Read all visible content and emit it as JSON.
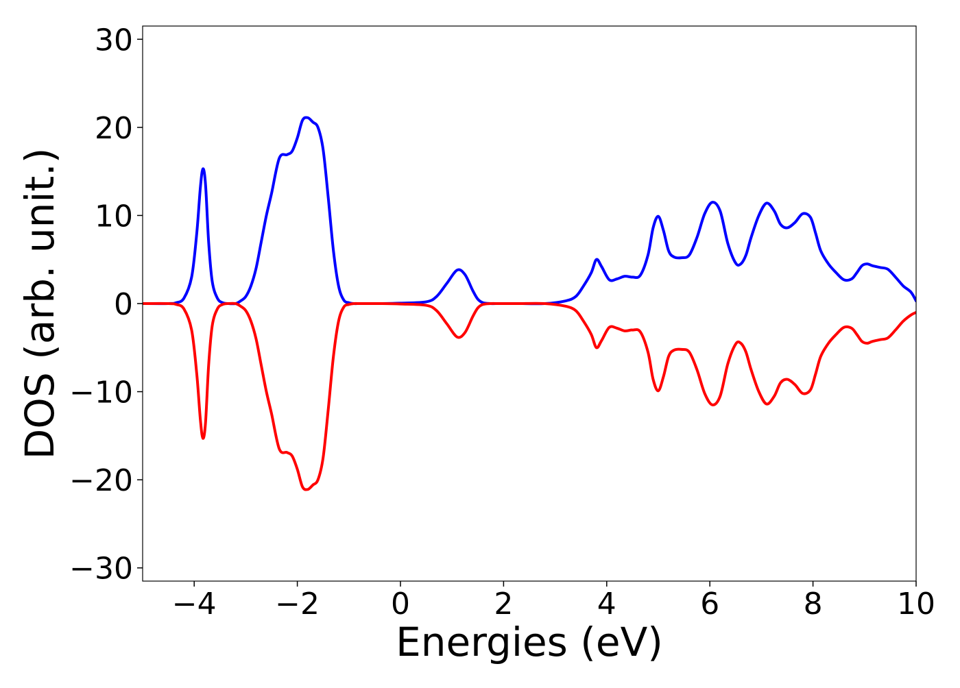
{
  "chart_data": {
    "type": "line",
    "title": "",
    "xlabel": "Energies (eV)",
    "ylabel": "DOS (arb. unit.)",
    "xlim": [
      -5,
      10
    ],
    "ylim": [
      -31.5,
      31.5
    ],
    "grid": false,
    "legend": "none",
    "x_ticks": [
      -4,
      -2,
      0,
      2,
      4,
      6,
      8,
      10
    ],
    "x_tick_labels": [
      "−4",
      "−2",
      "0",
      "2",
      "4",
      "6",
      "8",
      "10"
    ],
    "y_ticks": [
      30,
      20,
      10,
      0,
      -10,
      -20,
      -30
    ],
    "y_tick_labels": [
      "30",
      "20",
      "10",
      "0",
      "−10",
      "−20",
      "−30"
    ],
    "series": [
      {
        "color": "#0000ff",
        "x": [
          -5.0,
          -4.5,
          -4.35,
          -4.2,
          -4.05,
          -3.95,
          -3.88,
          -3.83,
          -3.78,
          -3.72,
          -3.65,
          -3.55,
          -3.45,
          -3.35,
          -3.2,
          -3.1,
          -3.0,
          -2.9,
          -2.8,
          -2.7,
          -2.6,
          -2.5,
          -2.35,
          -2.2,
          -2.1,
          -2.0,
          -1.9,
          -1.8,
          -1.7,
          -1.6,
          -1.5,
          -1.4,
          -1.3,
          -1.2,
          -1.1,
          -1.0,
          -0.9,
          -0.8,
          -0.7,
          -0.6,
          -0.4,
          0.0,
          0.5,
          0.7,
          0.9,
          1.1,
          1.25,
          1.4,
          1.5,
          1.6,
          1.75,
          1.9,
          2.05,
          2.3,
          2.8,
          3.2,
          3.4,
          3.55,
          3.7,
          3.8,
          3.9,
          4.05,
          4.2,
          4.35,
          4.5,
          4.65,
          4.8,
          4.9,
          5.0,
          5.1,
          5.2,
          5.3,
          5.45,
          5.6,
          5.75,
          5.9,
          6.05,
          6.2,
          6.35,
          6.5,
          6.6,
          6.7,
          6.8,
          6.95,
          7.1,
          7.25,
          7.37,
          7.5,
          7.65,
          7.8,
          7.95,
          8.05,
          8.15,
          8.3,
          8.45,
          8.6,
          8.75,
          8.85,
          8.95,
          9.05,
          9.15,
          9.3,
          9.45,
          9.6,
          9.75,
          9.9,
          10.0
        ],
        "values": [
          0,
          0,
          0.1,
          0.6,
          3.0,
          8.0,
          13.2,
          15.3,
          13.5,
          7.0,
          2.5,
          0.6,
          0.1,
          0.0,
          0.0,
          0.3,
          0.8,
          2.0,
          4.0,
          7.0,
          10.0,
          12.5,
          16.5,
          16.9,
          17.3,
          18.8,
          20.8,
          21.1,
          20.6,
          20.0,
          17.5,
          12.0,
          6.0,
          2.0,
          0.4,
          0.1,
          0.0,
          0.0,
          0.0,
          0.0,
          0.0,
          0.05,
          0.2,
          0.8,
          2.3,
          3.8,
          3.3,
          1.5,
          0.5,
          0.1,
          0.0,
          0.0,
          0.0,
          0.0,
          0.0,
          0.3,
          0.8,
          2.0,
          3.5,
          5.0,
          4.2,
          2.7,
          2.8,
          3.1,
          3.0,
          3.2,
          5.5,
          8.6,
          9.9,
          8.3,
          6.0,
          5.3,
          5.2,
          5.5,
          7.5,
          10.2,
          11.5,
          10.5,
          6.8,
          4.6,
          4.5,
          5.5,
          7.5,
          10.0,
          11.4,
          10.5,
          9.0,
          8.6,
          9.2,
          10.2,
          9.8,
          8.0,
          6.0,
          4.5,
          3.5,
          2.7,
          2.8,
          3.5,
          4.3,
          4.5,
          4.3,
          4.1,
          3.9,
          3.0,
          2.0,
          1.3,
          0.3
        ]
      },
      {
        "color": "#ff0000",
        "x": [
          -5.0,
          -4.5,
          -4.35,
          -4.2,
          -4.05,
          -3.95,
          -3.88,
          -3.83,
          -3.78,
          -3.72,
          -3.65,
          -3.55,
          -3.45,
          -3.35,
          -3.2,
          -3.1,
          -3.0,
          -2.9,
          -2.8,
          -2.7,
          -2.6,
          -2.5,
          -2.35,
          -2.2,
          -2.1,
          -2.0,
          -1.9,
          -1.8,
          -1.7,
          -1.6,
          -1.5,
          -1.4,
          -1.3,
          -1.2,
          -1.1,
          -1.0,
          -0.9,
          -0.8,
          -0.7,
          -0.6,
          -0.4,
          0.0,
          0.5,
          0.7,
          0.9,
          1.1,
          1.25,
          1.4,
          1.5,
          1.6,
          1.75,
          1.9,
          2.05,
          2.3,
          2.8,
          3.2,
          3.4,
          3.55,
          3.7,
          3.8,
          3.9,
          4.05,
          4.2,
          4.35,
          4.5,
          4.65,
          4.8,
          4.9,
          5.0,
          5.1,
          5.2,
          5.3,
          5.45,
          5.6,
          5.75,
          5.9,
          6.05,
          6.2,
          6.35,
          6.5,
          6.6,
          6.7,
          6.8,
          6.95,
          7.1,
          7.25,
          7.37,
          7.5,
          7.65,
          7.8,
          7.95,
          8.05,
          8.15,
          8.3,
          8.45,
          8.6,
          8.75,
          8.85,
          8.95,
          9.05,
          9.15,
          9.3,
          9.45,
          9.6,
          9.75,
          9.9,
          10.0
        ],
        "values": [
          0,
          0,
          -0.1,
          -0.6,
          -3.0,
          -8.0,
          -13.2,
          -15.3,
          -13.5,
          -7.0,
          -2.5,
          -0.6,
          -0.1,
          0.0,
          0.0,
          -0.3,
          -0.8,
          -2.0,
          -4.0,
          -7.0,
          -10.0,
          -12.5,
          -16.5,
          -16.9,
          -17.3,
          -18.8,
          -20.8,
          -21.1,
          -20.6,
          -20.0,
          -17.5,
          -12.0,
          -6.0,
          -2.0,
          -0.4,
          -0.1,
          0.0,
          0.0,
          0.0,
          0.0,
          0.0,
          -0.05,
          -0.2,
          -0.8,
          -2.3,
          -3.8,
          -3.3,
          -1.5,
          -0.5,
          -0.1,
          0.0,
          0.0,
          0.0,
          0.0,
          0.0,
          -0.3,
          -0.8,
          -2.0,
          -3.5,
          -5.0,
          -4.2,
          -2.7,
          -2.8,
          -3.1,
          -3.0,
          -3.2,
          -5.5,
          -8.6,
          -9.9,
          -8.3,
          -6.0,
          -5.3,
          -5.2,
          -5.5,
          -7.5,
          -10.2,
          -11.5,
          -10.5,
          -6.8,
          -4.6,
          -4.5,
          -5.5,
          -7.5,
          -10.0,
          -11.4,
          -10.5,
          -9.0,
          -8.6,
          -9.2,
          -10.2,
          -9.8,
          -8.0,
          -6.0,
          -4.5,
          -3.5,
          -2.7,
          -2.8,
          -3.5,
          -4.3,
          -4.5,
          -4.3,
          -4.1,
          -3.9,
          -3.0,
          -2.0,
          -1.3,
          -1.0
        ]
      }
    ]
  }
}
